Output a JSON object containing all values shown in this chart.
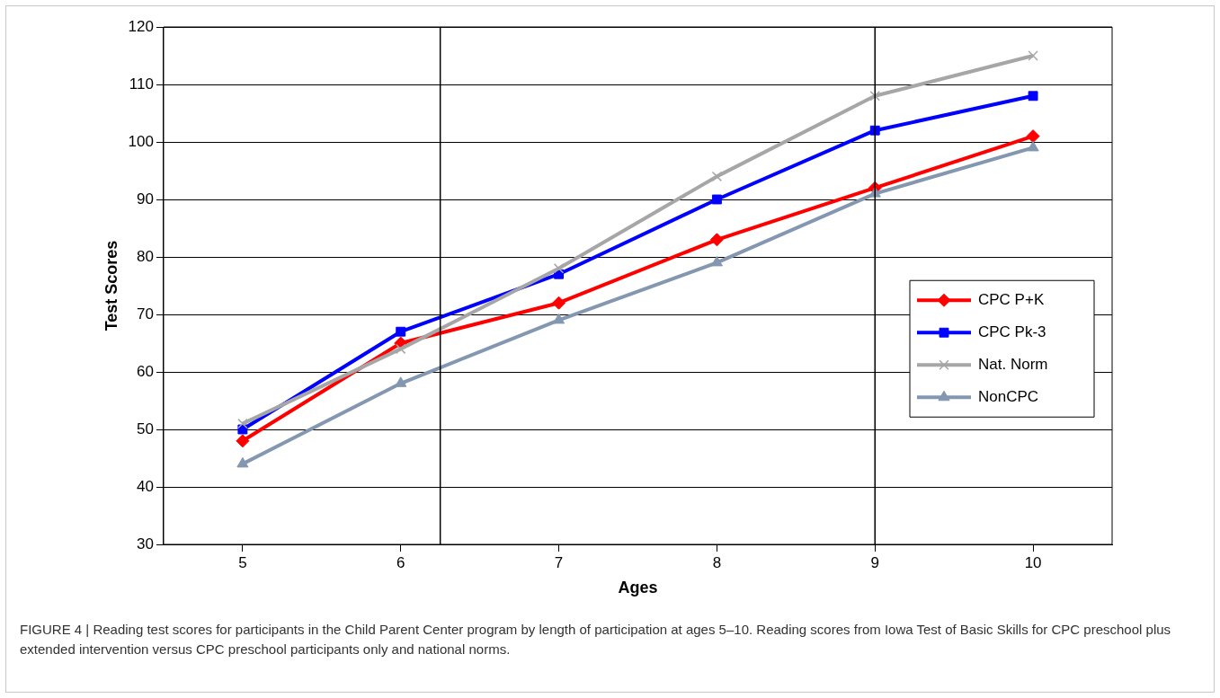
{
  "chart_data": {
    "type": "line",
    "xlabel": "Ages",
    "ylabel": "Test Scores",
    "x": [
      5,
      6,
      7,
      8,
      9,
      10
    ],
    "xlim": [
      4.5,
      10.5
    ],
    "xticks": [
      5,
      6,
      7,
      8,
      9,
      10
    ],
    "ylim": [
      30,
      120
    ],
    "yticks": [
      30,
      40,
      50,
      60,
      70,
      80,
      90,
      100,
      110,
      120
    ],
    "grid": "y",
    "legend": "right",
    "series": [
      {
        "name": "CPC P+K",
        "color": "#ff0000",
        "marker": "diamond",
        "values": [
          48,
          65,
          72,
          83,
          92,
          101
        ]
      },
      {
        "name": "CPC Pk-3",
        "color": "#0000ff",
        "marker": "square",
        "values": [
          50,
          67,
          77,
          90,
          102,
          108
        ]
      },
      {
        "name": "Nat. Norm",
        "color": "#a6a6a6",
        "marker": "cross",
        "values": [
          51,
          64,
          78,
          94,
          108,
          115
        ]
      },
      {
        "name": "NonCPC",
        "color": "#8497b0",
        "marker": "triangle",
        "values": [
          44,
          58,
          69,
          79,
          91,
          99
        ]
      }
    ],
    "ref_lines": [
      {
        "axis": "x",
        "value": 6.25,
        "color": "#000000"
      },
      {
        "axis": "x",
        "value": 9,
        "color": "#000000"
      }
    ],
    "annotations": [
      "FIGURE 4 | Reading test scores for participants in the Child Parent Center program by length of participation at ages 5–10. Reading scores from Iowa Test of Basic Skills for CPC preschool plus extended intervention versus CPC preschool participants only and national norms."
    ]
  }
}
